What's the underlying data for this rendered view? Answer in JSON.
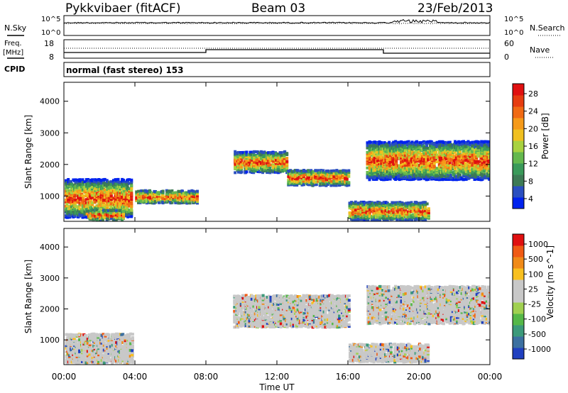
{
  "header": {
    "station": "Pykkvibaer (fitACF)",
    "beam": "Beam 03",
    "date": "23/Feb/2013"
  },
  "left_labels": {
    "nsky": "N.Sky",
    "freq_line1": "Freq.",
    "freq_line2": "[MHz]",
    "cpid": "CPID"
  },
  "right_labels": {
    "nsearch": "N.Search",
    "nave": "Nave"
  },
  "cpid_text": "normal (fast stereo) 153",
  "noise_panel": {
    "left_ticks": [
      "10^5",
      "10^0"
    ],
    "right_ticks": [
      "10^5",
      "10^0"
    ]
  },
  "freq_panel": {
    "left_ticks": [
      "18",
      "8"
    ],
    "right_ticks": [
      "60",
      "0"
    ]
  },
  "colors": {
    "power": [
      "#0022ee",
      "#2a4fc0",
      "#3d7a55",
      "#3a9a5a",
      "#64b84e",
      "#a8d240",
      "#f0c020",
      "#f59a1a",
      "#f06a14",
      "#e63c10",
      "#e01010"
    ],
    "velocity": [
      "#2040c0",
      "#3c70a0",
      "#3c9a7a",
      "#55b848",
      "#a0d050",
      "#c8c8c8",
      "#c8c8c8",
      "#f8c020",
      "#f08a18",
      "#f05a14",
      "#e01010"
    ]
  },
  "chart_data": [
    {
      "type": "heatmap",
      "quantity": "power",
      "title": "",
      "xlabel": "Time UT",
      "ylabel": "Slant Range [km]",
      "x_ticks": [
        "00:00",
        "04:00",
        "08:00",
        "12:00",
        "16:00",
        "20:00",
        "00:00"
      ],
      "y_ticks": [
        "1000",
        "2000",
        "3000",
        "4000"
      ],
      "ylim": [
        200,
        4600
      ],
      "colorbar": {
        "label": "Power [dB]",
        "ticks": [
          "4",
          "8",
          "12",
          "16",
          "20",
          "24",
          "28"
        ],
        "range": [
          0,
          30
        ]
      },
      "echo_regions": [
        {
          "t_start": 0.0,
          "t_end": 3.8,
          "r_center": 900,
          "r_halfwidth": 600
        },
        {
          "t_start": 1.2,
          "t_end": 3.3,
          "r_center": 380,
          "r_halfwidth": 140
        },
        {
          "t_start": 4.0,
          "t_end": 7.5,
          "r_center": 950,
          "r_halfwidth": 180
        },
        {
          "t_start": 9.5,
          "t_end": 12.5,
          "r_center": 2050,
          "r_halfwidth": 330
        },
        {
          "t_start": 12.5,
          "t_end": 16.0,
          "r_center": 1550,
          "r_halfwidth": 240
        },
        {
          "t_start": 16.0,
          "t_end": 20.5,
          "r_center": 500,
          "r_halfwidth": 250
        },
        {
          "t_start": 17.0,
          "t_end": 24.0,
          "r_center": 2100,
          "r_halfwidth": 600
        }
      ]
    },
    {
      "type": "heatmap",
      "quantity": "velocity",
      "title": "",
      "xlabel": "Time UT",
      "ylabel": "Slant Range [km]",
      "x_ticks": [
        "00:00",
        "04:00",
        "08:00",
        "12:00",
        "16:00",
        "20:00",
        "00:00"
      ],
      "y_ticks": [
        "1000",
        "2000",
        "3000",
        "4000"
      ],
      "ylim": [
        200,
        4600
      ],
      "colorbar": {
        "label": "Velocity [m s^-1]",
        "ticks": [
          "1000",
          "500",
          "100",
          "25",
          "-25",
          "-100",
          "-500",
          "-1000"
        ],
        "range": [
          -1000,
          1000
        ]
      },
      "echo_regions": [
        {
          "t_start": 0.0,
          "t_end": 3.8,
          "r_center": 700,
          "r_halfwidth": 450
        },
        {
          "t_start": 3.0,
          "t_end": 3.8,
          "r_center": 450,
          "r_halfwidth": 200
        },
        {
          "t_start": 9.5,
          "t_end": 16.0,
          "r_center": 1900,
          "r_halfwidth": 500
        },
        {
          "t_start": 16.0,
          "t_end": 20.5,
          "r_center": 550,
          "r_halfwidth": 250
        },
        {
          "t_start": 17.0,
          "t_end": 24.0,
          "r_center": 2100,
          "r_halfwidth": 600
        }
      ]
    }
  ]
}
